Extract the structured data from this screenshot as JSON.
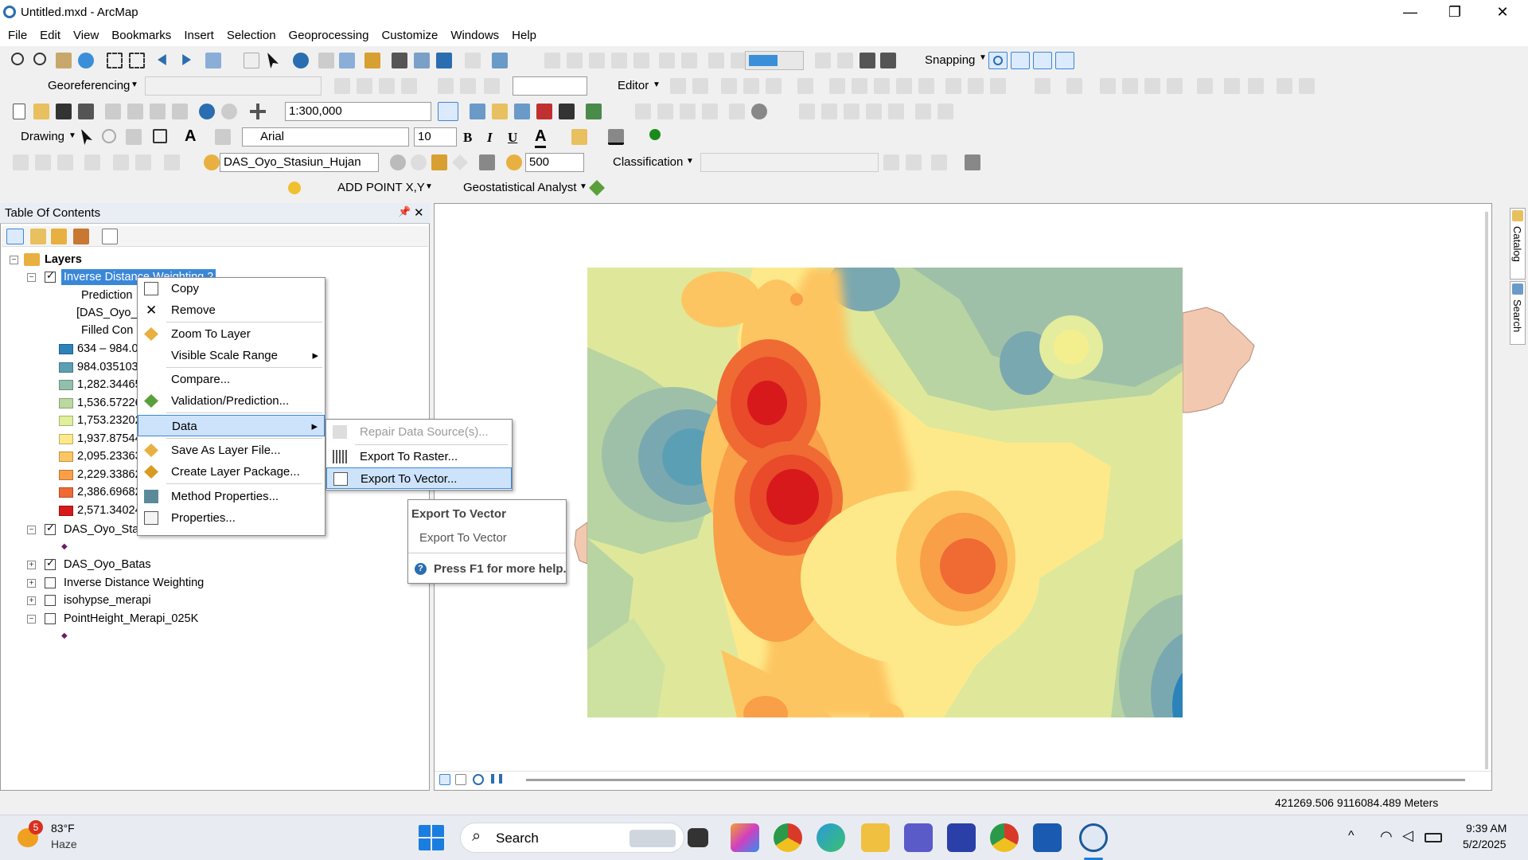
{
  "window": {
    "title": "Untitled.mxd - ArcMap",
    "min": "—",
    "max": "❐",
    "close": "✕"
  },
  "menu": [
    "File",
    "Edit",
    "View",
    "Bookmarks",
    "Insert",
    "Selection",
    "Geoprocessing",
    "Customize",
    "Windows",
    "Help"
  ],
  "toolbars": {
    "snapping": "Snapping",
    "georeferencing": "Georeferencing",
    "editor": "Editor",
    "scale": "1:300,000",
    "drawing": "Drawing",
    "font": "Arial",
    "font_size": "10",
    "bold": "B",
    "italic": "I",
    "underline": "U",
    "font_color": "A",
    "layer_combo": "DAS_Oyo_Stasiun_Hujan",
    "count": "500",
    "classification": "Classification",
    "add_point": "ADD POINT X,Y",
    "geostat": "Geostatistical Analyst"
  },
  "toc": {
    "title": "Table Of Contents",
    "pin": "📌",
    "close": "✕",
    "root": "Layers",
    "items": [
      {
        "label": "Inverse Distance Weighting 2",
        "selected": true
      },
      {
        "label": "Prediction"
      },
      {
        "label": "[DAS_Oyo_"
      },
      {
        "label": "Filled Con"
      }
    ],
    "legend": [
      {
        "label": "634 – 984.0",
        "color": "#2b83ba"
      },
      {
        "label": "984.035103",
        "color": "#5b9fb5"
      },
      {
        "label": "1,282.34465",
        "color": "#91bfac"
      },
      {
        "label": "1,536.57226",
        "color": "#b9d99e"
      },
      {
        "label": "1,753.23202",
        "color": "#dfef9a"
      },
      {
        "label": "1,937.87544",
        "color": "#fee98a"
      },
      {
        "label": "2,095.23363",
        "color": "#fdc561"
      },
      {
        "label": "2,229.33862",
        "color": "#f99f47"
      },
      {
        "label": "2,386.69682",
        "color": "#f06a34"
      },
      {
        "label": "2,571.34024",
        "color": "#d7191c"
      }
    ],
    "layers": [
      {
        "label": "DAS_Oyo_Stas",
        "checked": true
      },
      {
        "label": "DAS_Oyo_Batas",
        "checked": true
      },
      {
        "label": "Inverse Distance Weighting",
        "checked": false
      },
      {
        "label": "isohypse_merapi",
        "checked": false
      },
      {
        "label": "PointHeight_Merapi_025K",
        "checked": false
      }
    ]
  },
  "context_menu": {
    "items": [
      "Copy",
      "Remove",
      "Zoom To Layer",
      "Visible Scale Range",
      "Compare...",
      "Validation/Prediction...",
      "Data",
      "Save As Layer File...",
      "Create Layer Package...",
      "Method Properties...",
      "Properties..."
    ],
    "arrow": "▸"
  },
  "submenu": {
    "items": [
      "Repair Data Source(s)...",
      "Export To Raster...",
      "Export To Vector..."
    ]
  },
  "tooltip": {
    "title": "Export To Vector",
    "desc": "Export To Vector",
    "help": "Press F1 for more help."
  },
  "dock": {
    "catalog": "Catalog",
    "search": "Search"
  },
  "status": {
    "coords": "421269.506  9116084.489 Meters"
  },
  "taskbar": {
    "temp": "83°F",
    "weather": "Haze",
    "badge": "5",
    "search": "Search",
    "time": "9:39 AM",
    "date": "5/2/2025"
  }
}
